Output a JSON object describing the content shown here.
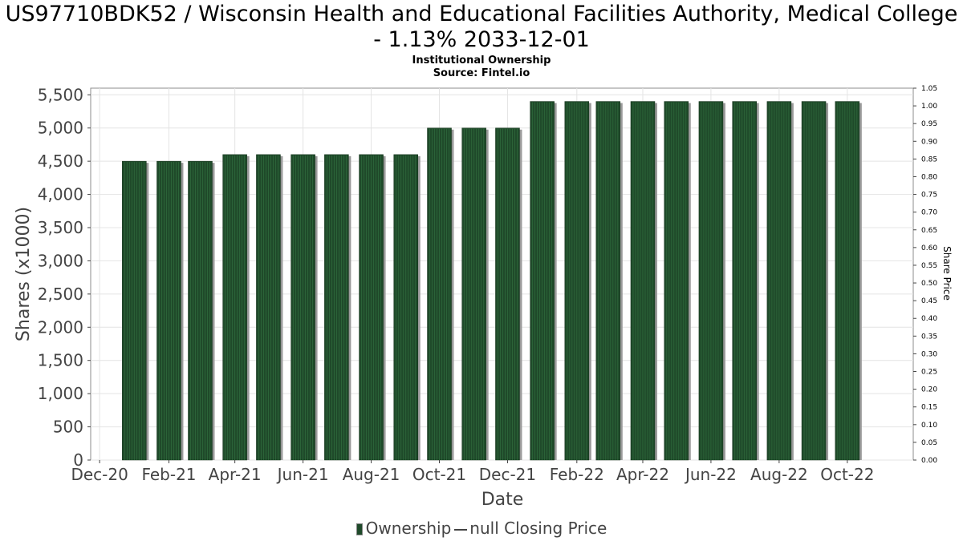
{
  "title": "US97710BDK52 / Wisconsin Health and Educational Facilities Authority, Medical College - 1.13% 2033-12-01",
  "subtitle_1": "Institutional Ownership",
  "subtitle_2": "Source: Fintel.io",
  "chart_data": {
    "type": "bar",
    "xlabel": "Date",
    "ylabel": "Shares (x1000)",
    "y2label": "Share Price",
    "ylim": [
      0,
      5600
    ],
    "y2lim": [
      0,
      1.05
    ],
    "xlim": [
      "2020-11-23",
      "2022-11-29"
    ],
    "x_tick_labels": [
      "Dec-20",
      "Feb-21",
      "Apr-21",
      "Jun-21",
      "Aug-21",
      "Oct-21",
      "Dec-21",
      "Feb-22",
      "Apr-22",
      "Jun-22",
      "Aug-22",
      "Oct-22"
    ],
    "x_tick_dates": [
      "2020-12-01",
      "2021-02-01",
      "2021-04-01",
      "2021-06-01",
      "2021-08-01",
      "2021-10-01",
      "2021-12-01",
      "2022-02-01",
      "2022-04-01",
      "2022-06-01",
      "2022-08-01",
      "2022-10-01"
    ],
    "y_ticks": [
      0,
      500,
      1000,
      1500,
      2000,
      2500,
      3000,
      3500,
      4000,
      4500,
      5000,
      5500
    ],
    "y_tick_labels": [
      "0",
      "500",
      "1,000",
      "1,500",
      "2,000",
      "2,500",
      "3,000",
      "3,500",
      "4,000",
      "4,500",
      "5,000",
      "5,500"
    ],
    "y2_ticks": [
      "0.00",
      "0.05",
      "0.10",
      "0.15",
      "0.20",
      "0.25",
      "0.30",
      "0.35",
      "0.40",
      "0.45",
      "0.50",
      "0.55",
      "0.60",
      "0.65",
      "0.70",
      "0.75",
      "0.80",
      "0.85",
      "0.90",
      "0.95",
      "1.00",
      "1.05"
    ],
    "x": [
      "2021-01-01",
      "2021-02-01",
      "2021-03-01",
      "2021-04-01",
      "2021-05-01",
      "2021-06-01",
      "2021-07-01",
      "2021-08-01",
      "2021-09-01",
      "2021-10-01",
      "2021-11-01",
      "2021-12-01",
      "2022-01-01",
      "2022-02-01",
      "2022-03-01",
      "2022-04-01",
      "2022-05-01",
      "2022-06-01",
      "2022-07-01",
      "2022-08-01",
      "2022-09-01",
      "2022-10-01"
    ],
    "series": [
      {
        "name": "Ownership",
        "values": [
          4500,
          4500,
          4500,
          4600,
          4600,
          4600,
          4600,
          4600,
          4600,
          5000,
          5000,
          5000,
          5400,
          5400,
          5400,
          5400,
          5400,
          5400,
          5400,
          5400,
          5400,
          5400
        ]
      }
    ],
    "legend": [
      "Ownership",
      "null Closing Price"
    ],
    "legend_position": "bottom",
    "grid": true,
    "colors": {
      "bar": "#1f4a2a",
      "bar_shadow": "#9a9a9a",
      "grid": "#e4e4e4"
    }
  }
}
